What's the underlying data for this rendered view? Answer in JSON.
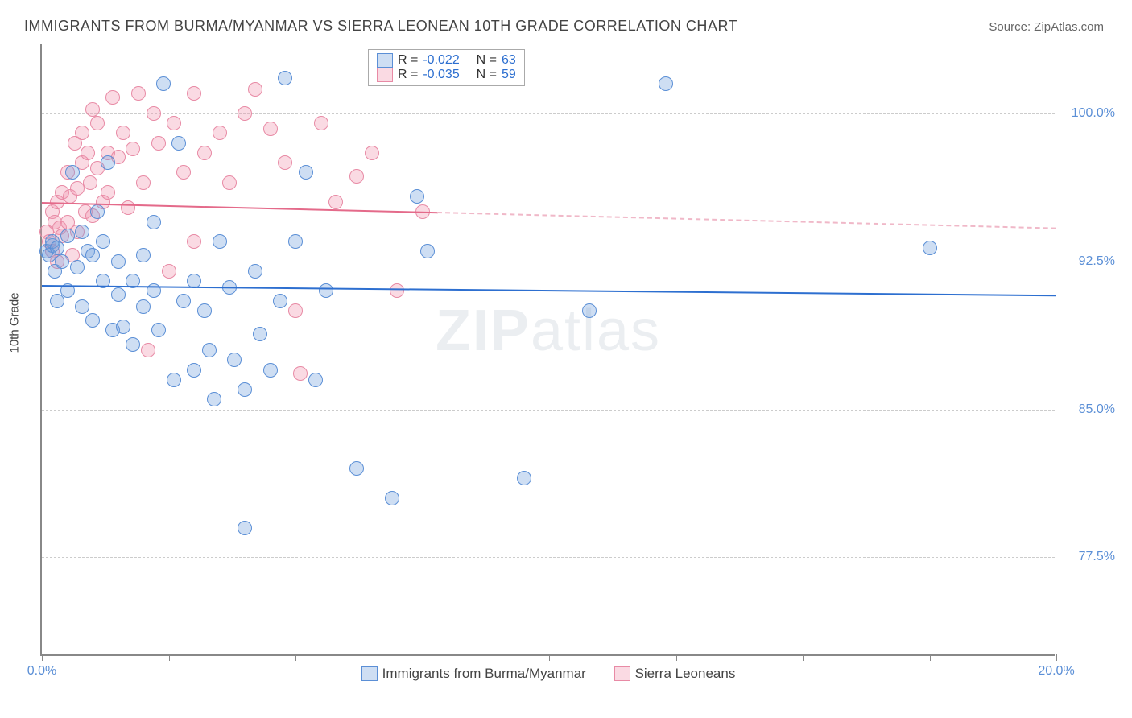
{
  "title": "IMMIGRANTS FROM BURMA/MYANMAR VS SIERRA LEONEAN 10TH GRADE CORRELATION CHART",
  "source_prefix": "Source: ",
  "source_name": "ZipAtlas.com",
  "ylabel": "10th Grade",
  "watermark_a": "ZIP",
  "watermark_b": "atlas",
  "xlim": [
    0,
    20
  ],
  "ylim": [
    72.5,
    103.5
  ],
  "yticks": [
    77.5,
    85.0,
    92.5,
    100.0
  ],
  "ytick_labels": [
    "77.5%",
    "85.0%",
    "92.5%",
    "100.0%"
  ],
  "xticks": [
    0,
    2.5,
    5.0,
    7.5,
    10.0,
    12.5,
    15.0,
    17.5,
    20.0
  ],
  "xtick_labels_shown": {
    "0": "0.0%",
    "20": "20.0%"
  },
  "series": {
    "a": {
      "label": "Immigrants from Burma/Myanmar",
      "fill": "rgba(115,160,220,0.35)",
      "stroke": "#5b8fd6",
      "R": "-0.022",
      "N": "63",
      "trend": {
        "y_at_x0": 91.3,
        "y_at_xmax": 90.8,
        "color": "#2d6fd0"
      }
    },
    "b": {
      "label": "Sierra Leoneans",
      "fill": "rgba(240,150,175,0.35)",
      "stroke": "#e88aa5",
      "R": "-0.035",
      "N": "59",
      "trend_solid": {
        "x0": 0,
        "y0": 95.5,
        "x1": 7.8,
        "y1": 95.0,
        "color": "#e46a8a"
      },
      "trend_dash": {
        "x0": 7.8,
        "y0": 95.0,
        "x1": 20,
        "y1": 94.2,
        "color": "#f0b8c8"
      }
    }
  },
  "legend_R_label": "R =",
  "legend_N_label": "N =",
  "points_a": [
    [
      0.1,
      93.0
    ],
    [
      0.15,
      92.8
    ],
    [
      0.2,
      93.3
    ],
    [
      0.2,
      93.5
    ],
    [
      0.25,
      92.0
    ],
    [
      0.3,
      93.2
    ],
    [
      0.3,
      90.5
    ],
    [
      0.4,
      92.5
    ],
    [
      0.5,
      91.0
    ],
    [
      0.5,
      93.8
    ],
    [
      0.6,
      97.0
    ],
    [
      0.7,
      92.2
    ],
    [
      0.8,
      94.0
    ],
    [
      0.8,
      90.2
    ],
    [
      0.9,
      93.0
    ],
    [
      1.0,
      89.5
    ],
    [
      1.0,
      92.8
    ],
    [
      1.1,
      95.0
    ],
    [
      1.2,
      91.5
    ],
    [
      1.2,
      93.5
    ],
    [
      1.3,
      97.5
    ],
    [
      1.4,
      89.0
    ],
    [
      1.5,
      92.5
    ],
    [
      1.5,
      90.8
    ],
    [
      1.6,
      89.2
    ],
    [
      1.8,
      91.5
    ],
    [
      1.8,
      88.3
    ],
    [
      2.0,
      90.2
    ],
    [
      2.0,
      92.8
    ],
    [
      2.2,
      94.5
    ],
    [
      2.2,
      91.0
    ],
    [
      2.3,
      89.0
    ],
    [
      2.4,
      101.5
    ],
    [
      2.6,
      86.5
    ],
    [
      2.7,
      98.5
    ],
    [
      2.8,
      90.5
    ],
    [
      3.0,
      91.5
    ],
    [
      3.0,
      87.0
    ],
    [
      3.2,
      90.0
    ],
    [
      3.3,
      88.0
    ],
    [
      3.5,
      93.5
    ],
    [
      3.7,
      91.2
    ],
    [
      3.8,
      87.5
    ],
    [
      4.0,
      86.0
    ],
    [
      4.0,
      79.0
    ],
    [
      4.3,
      88.8
    ],
    [
      4.5,
      87.0
    ],
    [
      4.7,
      90.5
    ],
    [
      4.8,
      101.8
    ],
    [
      5.2,
      97.0
    ],
    [
      5.4,
      86.5
    ],
    [
      5.6,
      91.0
    ],
    [
      6.2,
      82.0
    ],
    [
      6.9,
      80.5
    ],
    [
      7.4,
      95.8
    ],
    [
      7.6,
      93.0
    ],
    [
      9.5,
      81.5
    ],
    [
      10.8,
      90.0
    ],
    [
      12.3,
      101.5
    ],
    [
      17.5,
      93.2
    ],
    [
      4.2,
      92.0
    ],
    [
      5.0,
      93.5
    ],
    [
      3.4,
      85.5
    ]
  ],
  "points_b": [
    [
      0.1,
      94.0
    ],
    [
      0.15,
      93.5
    ],
    [
      0.2,
      95.0
    ],
    [
      0.2,
      93.0
    ],
    [
      0.25,
      94.5
    ],
    [
      0.3,
      95.5
    ],
    [
      0.3,
      92.5
    ],
    [
      0.35,
      94.2
    ],
    [
      0.4,
      96.0
    ],
    [
      0.4,
      93.8
    ],
    [
      0.5,
      97.0
    ],
    [
      0.5,
      94.5
    ],
    [
      0.55,
      95.8
    ],
    [
      0.6,
      92.8
    ],
    [
      0.65,
      98.5
    ],
    [
      0.7,
      96.2
    ],
    [
      0.7,
      94.0
    ],
    [
      0.8,
      97.5
    ],
    [
      0.8,
      99.0
    ],
    [
      0.85,
      95.0
    ],
    [
      0.9,
      98.0
    ],
    [
      0.95,
      96.5
    ],
    [
      1.0,
      100.2
    ],
    [
      1.0,
      94.8
    ],
    [
      1.1,
      97.2
    ],
    [
      1.1,
      99.5
    ],
    [
      1.2,
      95.5
    ],
    [
      1.3,
      98.0
    ],
    [
      1.3,
      96.0
    ],
    [
      1.4,
      100.8
    ],
    [
      1.5,
      97.8
    ],
    [
      1.6,
      99.0
    ],
    [
      1.7,
      95.2
    ],
    [
      1.8,
      98.2
    ],
    [
      1.9,
      101.0
    ],
    [
      2.0,
      96.5
    ],
    [
      2.1,
      88.0
    ],
    [
      2.2,
      100.0
    ],
    [
      2.3,
      98.5
    ],
    [
      2.5,
      92.0
    ],
    [
      2.6,
      99.5
    ],
    [
      2.8,
      97.0
    ],
    [
      3.0,
      93.5
    ],
    [
      3.0,
      101.0
    ],
    [
      3.2,
      98.0
    ],
    [
      3.5,
      99.0
    ],
    [
      3.7,
      96.5
    ],
    [
      4.0,
      100.0
    ],
    [
      4.2,
      101.2
    ],
    [
      4.5,
      99.2
    ],
    [
      4.8,
      97.5
    ],
    [
      5.0,
      90.0
    ],
    [
      5.1,
      86.8
    ],
    [
      5.5,
      99.5
    ],
    [
      5.8,
      95.5
    ],
    [
      6.2,
      96.8
    ],
    [
      6.5,
      98.0
    ],
    [
      7.0,
      91.0
    ],
    [
      7.5,
      95.0
    ]
  ]
}
